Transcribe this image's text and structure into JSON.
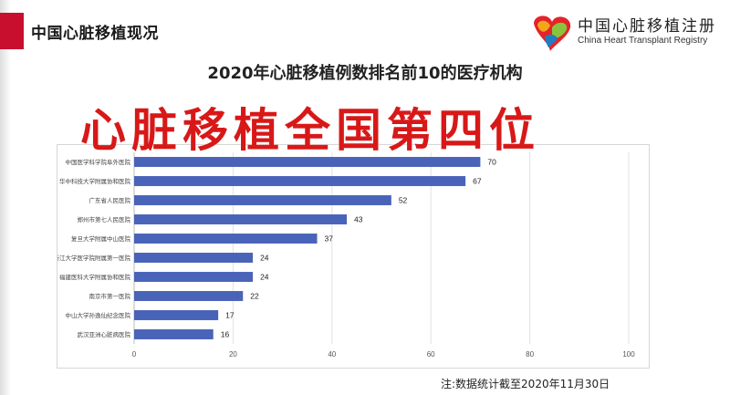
{
  "header": {
    "title": "中国心脏移植现况"
  },
  "logo": {
    "cn": "中国心脏移植注册",
    "en": "China Heart Transplant Registry",
    "colors": [
      "#e4232a",
      "#f2a71b",
      "#8ac43f",
      "#1f7ec2"
    ]
  },
  "overlay_text": "心脏移植全国第四位",
  "note": "注:数据统计截至2020年11月30日",
  "colors": {
    "bar": "#4863b8",
    "accent": "#c8102e",
    "overlay": "#d81818"
  },
  "chart_data": {
    "type": "bar",
    "orientation": "horizontal",
    "title": "2020年心脏移植例数排名前10的医疗机构",
    "categories": [
      "中国医学科学院阜外医院",
      "华中科技大学附属协和医院",
      "广东省人民医院",
      "郑州市第七人民医院",
      "复旦大学附属中山医院",
      "浙江大学医学院附属第一医院",
      "福建医科大学附属协和医院",
      "南京市第一医院",
      "中山大学孙逸仙纪念医院",
      "武汉亚洲心脏病医院"
    ],
    "values": [
      70,
      67,
      52,
      43,
      37,
      24,
      24,
      22,
      17,
      16
    ],
    "xlim": [
      0,
      100
    ],
    "xticks": [
      0,
      20,
      40,
      60,
      80,
      100
    ],
    "xlabel": "",
    "ylabel": "",
    "grid": true
  }
}
